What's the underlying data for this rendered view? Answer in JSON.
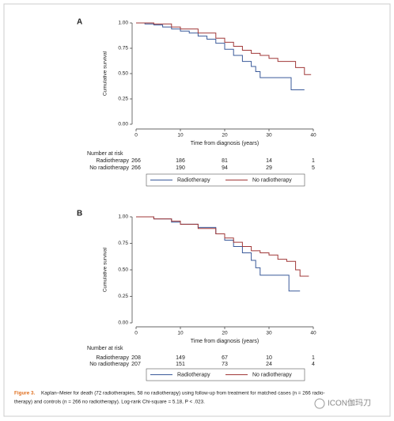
{
  "chart_data": [
    {
      "type": "step",
      "panel_label": "A",
      "xlabel": "Time from diagnosis (years)",
      "ylabel": "Cumulative survival",
      "xlim": [
        0,
        40
      ],
      "xticks": [
        0,
        10,
        20,
        30,
        40
      ],
      "ylim": [
        0,
        1
      ],
      "yticks": [
        {
          "value": 0,
          "label": "0.00"
        },
        {
          "value": 0.25,
          "label": "0.25"
        },
        {
          "value": 0.5,
          "label": "0.50"
        },
        {
          "value": 0.75,
          "label": "0.75"
        },
        {
          "value": 1,
          "label": "1.00"
        }
      ],
      "series": [
        {
          "name": "Radiotherapy",
          "color": "#3a5a9a",
          "x": [
            0,
            2,
            4,
            6,
            8,
            10,
            12,
            14,
            16,
            18,
            20,
            22,
            24,
            26,
            27,
            28,
            30,
            32,
            35,
            38
          ],
          "values": [
            1,
            0.99,
            0.98,
            0.96,
            0.94,
            0.92,
            0.9,
            0.87,
            0.84,
            0.8,
            0.74,
            0.68,
            0.62,
            0.57,
            0.52,
            0.46,
            0.46,
            0.46,
            0.34,
            0.34
          ]
        },
        {
          "name": "No radiotherapy",
          "color": "#a03838",
          "x": [
            0,
            4,
            8,
            10,
            14,
            18,
            20,
            22,
            24,
            26,
            28,
            30,
            32,
            34,
            36,
            38,
            39.5
          ],
          "values": [
            1,
            0.99,
            0.96,
            0.94,
            0.9,
            0.85,
            0.81,
            0.77,
            0.73,
            0.7,
            0.68,
            0.65,
            0.62,
            0.62,
            0.56,
            0.49,
            0.49
          ]
        }
      ],
      "risk_table": {
        "title": "Number at risk",
        "rows": [
          {
            "name": "Radiotherapy",
            "values": [
              266,
              186,
              81,
              14,
              1
            ]
          },
          {
            "name": "No radiotherapy",
            "values": [
              266,
              190,
              94,
              29,
              5
            ]
          }
        ]
      }
    },
    {
      "type": "step",
      "panel_label": "B",
      "xlabel": "Time from diagnosis (years)",
      "ylabel": "Cumulative survival",
      "xlim": [
        0,
        40
      ],
      "xticks": [
        0,
        10,
        20,
        30,
        40
      ],
      "ylim": [
        0,
        1
      ],
      "yticks": [
        {
          "value": 0,
          "label": "0.00"
        },
        {
          "value": 0.25,
          "label": "0.25"
        },
        {
          "value": 0.5,
          "label": "0.50"
        },
        {
          "value": 0.75,
          "label": "0.75"
        },
        {
          "value": 1,
          "label": "1.00"
        }
      ],
      "series": [
        {
          "name": "Radiotherapy",
          "color": "#3a5a9a",
          "x": [
            0,
            4,
            8,
            10,
            14,
            18,
            20,
            22,
            24,
            26,
            27,
            28,
            32,
            34.5,
            37
          ],
          "values": [
            1,
            0.98,
            0.95,
            0.93,
            0.9,
            0.84,
            0.78,
            0.72,
            0.66,
            0.59,
            0.52,
            0.45,
            0.45,
            0.3,
            0.3
          ]
        },
        {
          "name": "No radiotherapy",
          "color": "#a03838",
          "x": [
            0,
            4,
            8,
            10,
            14,
            18,
            20,
            22,
            24,
            26,
            28,
            30,
            32,
            34,
            36,
            37,
            39
          ],
          "values": [
            1,
            0.98,
            0.96,
            0.93,
            0.89,
            0.84,
            0.8,
            0.76,
            0.72,
            0.68,
            0.66,
            0.64,
            0.6,
            0.58,
            0.5,
            0.44,
            0.44
          ]
        }
      ],
      "risk_table": {
        "title": "Number at risk",
        "rows": [
          {
            "name": "Radiotherapy",
            "values": [
              208,
              149,
              67,
              10,
              1
            ]
          },
          {
            "name": "No radiotherapy",
            "values": [
              207,
              151,
              73,
              24,
              4
            ]
          }
        ]
      }
    }
  ],
  "caption": {
    "label": "Figure 3.",
    "line1": "Kaplan–Meier for death (72 radiotherapies, 58 no radiotherapy) using follow-up from treatment for matched cases (n = 266 radio-",
    "line2": "therapy) and controls (n = 266 no radiotherapy). Log-rank Chi-square = 5.18, P < .023."
  },
  "watermark": "ICON伽玛刀"
}
